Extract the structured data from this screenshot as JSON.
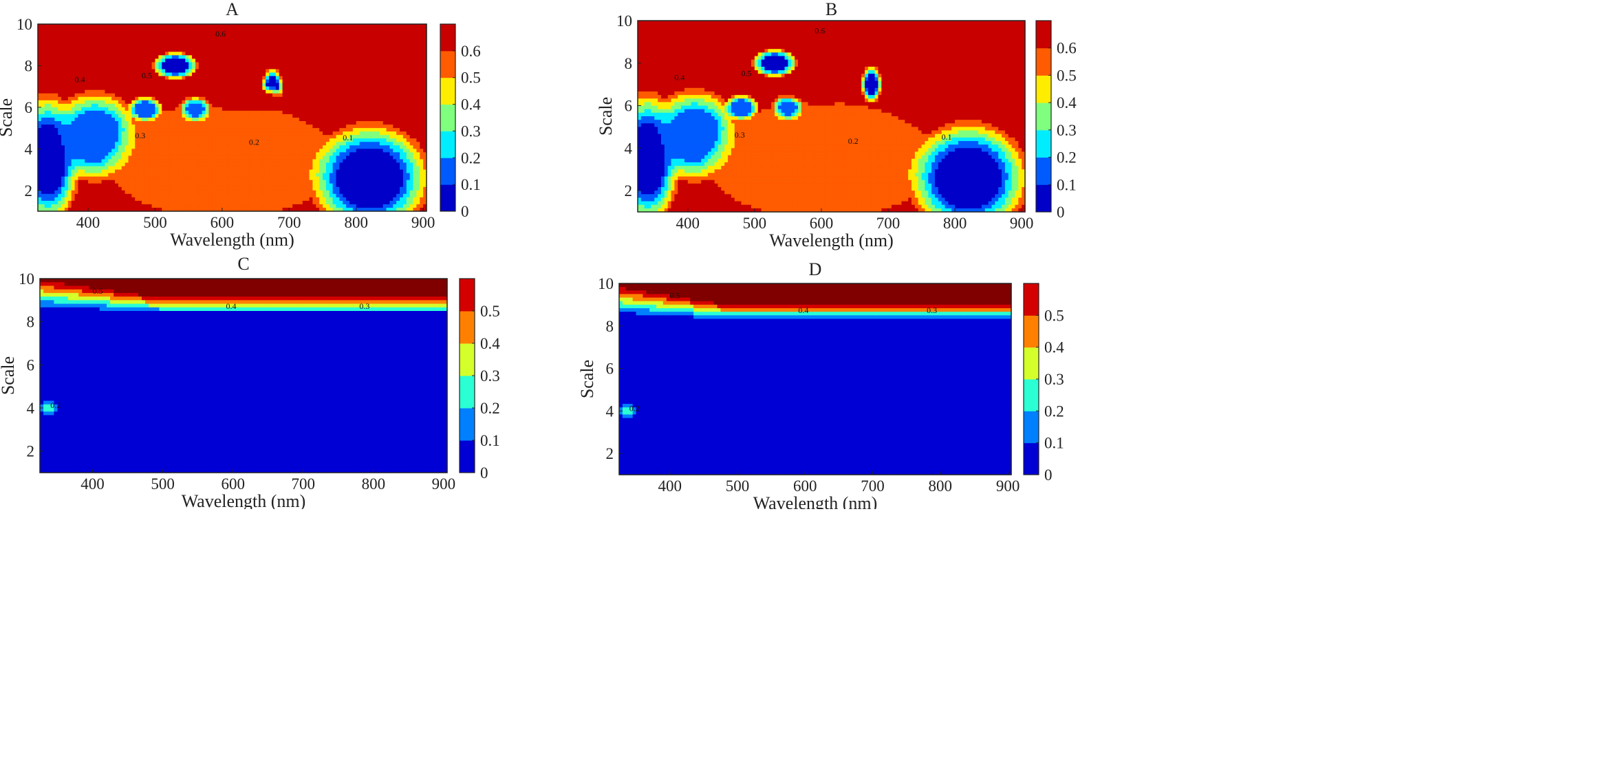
{
  "figure": {
    "panels": [
      {
        "id": "A",
        "title": "A",
        "xlabel": "Wavelength (nm)",
        "ylabel": "Scale",
        "colorbar_ticks": [
          "0",
          "0.1",
          "0.2",
          "0.3",
          "0.4",
          "0.5",
          "0.6"
        ],
        "contour_labels": [
          "0.6",
          "0.5",
          "0.4",
          "0.3",
          "0.2",
          "0.1"
        ]
      },
      {
        "id": "B",
        "title": "B",
        "xlabel": "Wavelength (nm)",
        "ylabel": "Scale",
        "colorbar_ticks": [
          "0",
          "0.1",
          "0.2",
          "0.3",
          "0.4",
          "0.5",
          "0.6"
        ],
        "contour_labels": [
          "0.6",
          "0.5",
          "0.4",
          "0.3",
          "0.2",
          "0.1"
        ]
      },
      {
        "id": "C",
        "title": "C",
        "xlabel": "Wavelength (nm)",
        "ylabel": "Scale",
        "colorbar_ticks": [
          "0",
          "0.1",
          "0.2",
          "0.3",
          "0.4",
          "0.5"
        ],
        "contour_labels": [
          "0.5",
          "0.4",
          "0.3",
          "0.2"
        ]
      },
      {
        "id": "D",
        "title": "D",
        "xlabel": "Wavelength (nm)",
        "ylabel": "Scale",
        "colorbar_ticks": [
          "0",
          "0.1",
          "0.2",
          "0.3",
          "0.4",
          "0.5"
        ],
        "contour_labels": [
          "0.5",
          "0.4",
          "0.3",
          "0.2"
        ]
      }
    ]
  },
  "chart_data": [
    {
      "type": "heatmap",
      "title": "A",
      "xlabel": "Wavelength (nm)",
      "ylabel": "Scale",
      "xlim": [
        325,
        905
      ],
      "ylim": [
        1,
        10
      ],
      "xticks": [
        400,
        500,
        600,
        700,
        800,
        900
      ],
      "yticks": [
        2,
        4,
        6,
        8,
        10
      ],
      "clim": [
        0,
        0.7
      ],
      "colorbar_ticks": [
        0,
        0.1,
        0.2,
        0.3,
        0.4,
        0.5,
        0.6
      ],
      "colormap": "jet",
      "features": [
        {
          "kind": "background",
          "value": 0.62
        },
        {
          "kind": "blob",
          "x": 340,
          "y": 3.5,
          "rx": 40,
          "ry": 2.6,
          "value": 0.05
        },
        {
          "kind": "blob",
          "x": 410,
          "y": 4.6,
          "rx": 55,
          "ry": 1.8,
          "value": 0.12
        },
        {
          "kind": "blob",
          "x": 600,
          "y": 3.4,
          "rx": 150,
          "ry": 2.4,
          "value": 0.5
        },
        {
          "kind": "blob",
          "x": 530,
          "y": 8.0,
          "rx": 28,
          "ry": 0.55,
          "value": 0.05
        },
        {
          "kind": "blob",
          "x": 675,
          "y": 7.0,
          "rx": 13,
          "ry": 0.7,
          "value": 0.05
        },
        {
          "kind": "blob",
          "x": 485,
          "y": 5.9,
          "rx": 22,
          "ry": 0.5,
          "value": 0.1
        },
        {
          "kind": "blob",
          "x": 560,
          "y": 5.9,
          "rx": 20,
          "ry": 0.5,
          "value": 0.15
        },
        {
          "kind": "blob",
          "x": 820,
          "y": 2.6,
          "rx": 75,
          "ry": 2.2,
          "value": 0.05
        },
        {
          "kind": "blob",
          "x": 640,
          "y": 6.4,
          "rx": 55,
          "ry": 0.55,
          "value": 0.68
        },
        {
          "kind": "blob",
          "x": 830,
          "y": 6.5,
          "rx": 70,
          "ry": 0.5,
          "value": 0.68
        }
      ]
    },
    {
      "type": "heatmap",
      "title": "B",
      "xlabel": "Wavelength (nm)",
      "ylabel": "Scale",
      "xlim": [
        325,
        905
      ],
      "ylim": [
        1,
        10
      ],
      "xticks": [
        400,
        500,
        600,
        700,
        800,
        900
      ],
      "yticks": [
        2,
        4,
        6,
        8,
        10
      ],
      "clim": [
        0,
        0.7
      ],
      "colorbar_ticks": [
        0,
        0.1,
        0.2,
        0.3,
        0.4,
        0.5,
        0.6
      ],
      "colormap": "jet",
      "features": [
        {
          "kind": "background",
          "value": 0.62
        },
        {
          "kind": "blob",
          "x": 340,
          "y": 3.5,
          "rx": 40,
          "ry": 2.6,
          "value": 0.05
        },
        {
          "kind": "blob",
          "x": 410,
          "y": 4.6,
          "rx": 55,
          "ry": 1.8,
          "value": 0.12
        },
        {
          "kind": "blob",
          "x": 600,
          "y": 3.4,
          "rx": 150,
          "ry": 2.4,
          "value": 0.5
        },
        {
          "kind": "blob",
          "x": 530,
          "y": 8.0,
          "rx": 28,
          "ry": 0.55,
          "value": 0.05
        },
        {
          "kind": "blob",
          "x": 675,
          "y": 7.0,
          "rx": 13,
          "ry": 0.7,
          "value": 0.05
        },
        {
          "kind": "blob",
          "x": 480,
          "y": 5.9,
          "rx": 22,
          "ry": 0.5,
          "value": 0.1
        },
        {
          "kind": "blob",
          "x": 550,
          "y": 5.9,
          "rx": 20,
          "ry": 0.5,
          "value": 0.15
        },
        {
          "kind": "blob",
          "x": 820,
          "y": 2.6,
          "rx": 75,
          "ry": 2.2,
          "value": 0.05
        },
        {
          "kind": "blob",
          "x": 600,
          "y": 6.6,
          "rx": 50,
          "ry": 0.45,
          "value": 0.68
        },
        {
          "kind": "blob",
          "x": 790,
          "y": 6.0,
          "rx": 15,
          "ry": 0.2,
          "value": 0.68
        }
      ]
    },
    {
      "type": "heatmap",
      "title": "C",
      "xlabel": "Wavelength (nm)",
      "ylabel": "Scale",
      "xlim": [
        325,
        905
      ],
      "ylim": [
        1,
        10
      ],
      "xticks": [
        400,
        500,
        600,
        700,
        800,
        900
      ],
      "yticks": [
        2,
        4,
        6,
        8,
        10
      ],
      "clim": [
        0,
        0.6
      ],
      "colorbar_ticks": [
        0,
        0.1,
        0.2,
        0.3,
        0.4,
        0.5
      ],
      "colormap": "jet",
      "features": [
        {
          "kind": "background",
          "value": 0.03
        },
        {
          "kind": "top_band",
          "x": [
            325,
            500,
            905
          ],
          "y_top": [
            8.5,
            8.3,
            8.3
          ],
          "y_dark": [
            9.9,
            9.1,
            9.1
          ],
          "value": 0.6
        },
        {
          "kind": "blob",
          "x": 337,
          "y": 4.0,
          "rx": 13,
          "ry": 0.3,
          "value": 0.22
        }
      ]
    },
    {
      "type": "heatmap",
      "title": "D",
      "xlabel": "Wavelength (nm)",
      "ylabel": "Scale",
      "xlim": [
        325,
        905
      ],
      "ylim": [
        1,
        10
      ],
      "xticks": [
        400,
        500,
        600,
        700,
        800,
        900
      ],
      "yticks": [
        2,
        4,
        6,
        8,
        10
      ],
      "clim": [
        0,
        0.6
      ],
      "colorbar_ticks": [
        0,
        0.1,
        0.2,
        0.3,
        0.4,
        0.5
      ],
      "colormap": "jet",
      "features": [
        {
          "kind": "background",
          "value": 0.03
        },
        {
          "kind": "top_band",
          "x": [
            325,
            480,
            905
          ],
          "y_top": [
            8.4,
            8.2,
            8.2
          ],
          "y_dark": [
            9.8,
            9.0,
            9.0
          ],
          "value": 0.6
        },
        {
          "kind": "blob",
          "x": 337,
          "y": 4.0,
          "rx": 13,
          "ry": 0.3,
          "value": 0.22
        }
      ]
    }
  ]
}
